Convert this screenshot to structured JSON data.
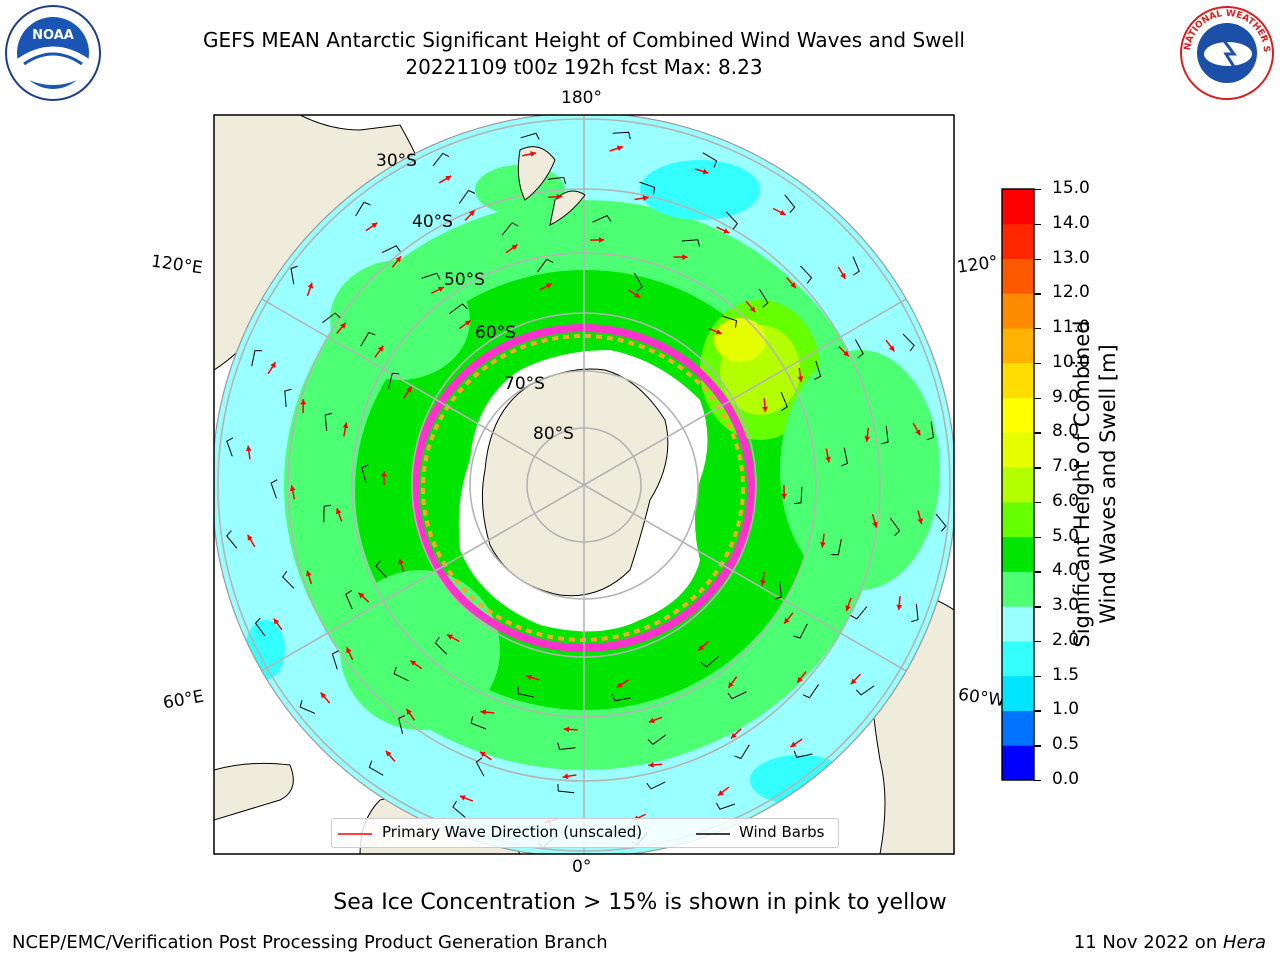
{
  "title": {
    "line1": "GEFS MEAN Antarctic Significant Height of Combined Wind Waves and Swell",
    "line2": "20221109 t00z 192h fcst   Max: 8.23"
  },
  "map": {
    "projection": "south-polar-stereographic",
    "longitude_labels": {
      "top": "180°",
      "bottom": "0°",
      "left_upper": "120°E",
      "left_lower": "60°E",
      "right_upper": "120°",
      "right_lower": "60°W"
    },
    "latitude_labels": [
      "30°S",
      "40°S",
      "50°S",
      "60°S",
      "70°S",
      "80°S"
    ],
    "colors": {
      "land": "#efecdc",
      "ice_edge": "#ff33cc",
      "ice_inner": "#f4a830",
      "grid": "#b4b4b4",
      "arrow": "#ff0000",
      "barb": "#000000"
    }
  },
  "legend": {
    "primary_wave": "Primary Wave Direction (unscaled)",
    "wind_barbs": "Wind Barbs"
  },
  "colorbar": {
    "label_line1": "Significant Height of Combined",
    "label_line2": "Wind Waves and Swell [m]",
    "ticks": [
      "0.0",
      "0.5",
      "1.0",
      "1.5",
      "2.0",
      "3.0",
      "4.0",
      "5.0",
      "6.0",
      "7.0",
      "8.0",
      "9.0",
      "10.0",
      "11.0",
      "12.0",
      "13.0",
      "14.0",
      "15.0"
    ],
    "colors": [
      "#0000ff",
      "#0073ff",
      "#00e5ff",
      "#33ffff",
      "#99ffff",
      "#4dff73",
      "#00e600",
      "#66ff00",
      "#b3ff00",
      "#e5ff00",
      "#ffff00",
      "#ffdd00",
      "#ffb300",
      "#ff8c00",
      "#ff5900",
      "#ff2600",
      "#ff0000"
    ]
  },
  "caption": "Sea Ice Concentration > 15% is shown in pink to yellow",
  "footer": {
    "left": "NCEP/EMC/Verification Post Processing Product Generation Branch",
    "right_date": "11 Nov 2022 on ",
    "right_host": "Hera"
  },
  "logos": {
    "left": "NOAA",
    "right": "NATIONAL WEATHER SERVICE"
  }
}
